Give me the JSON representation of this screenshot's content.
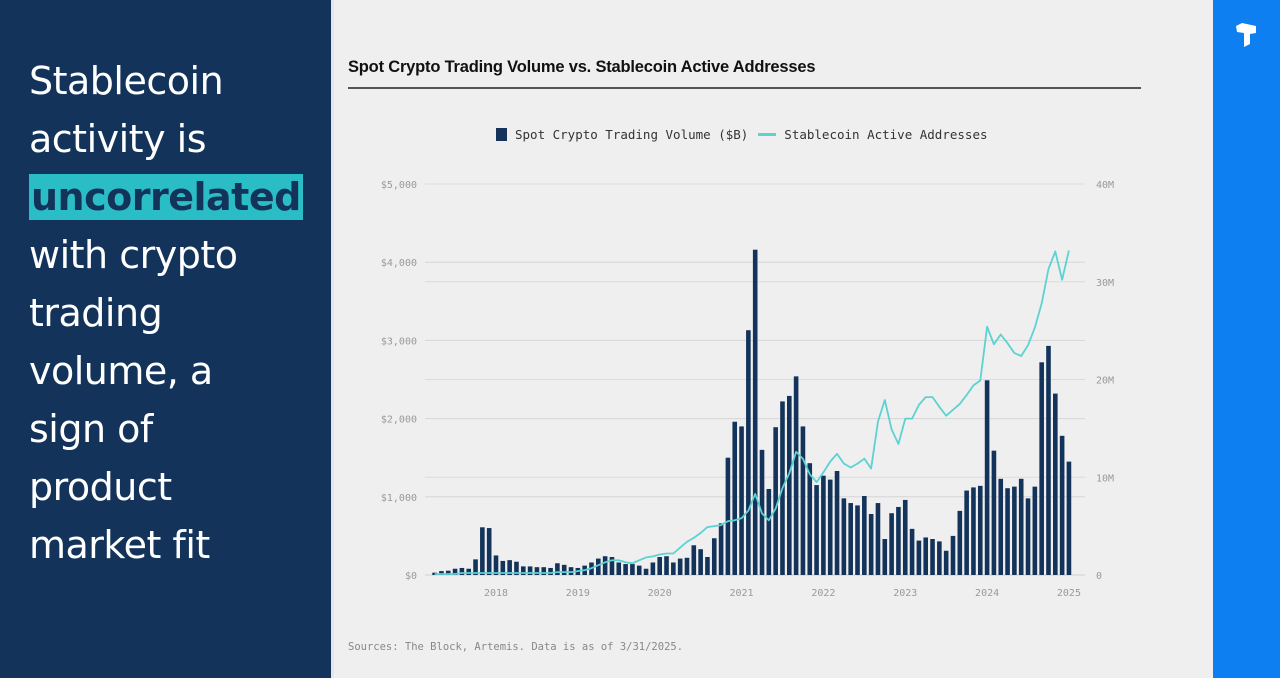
{
  "left_panel": {
    "headline_lines": [
      "Stablecoin",
      "activity is",
      "uncorrelated",
      "with crypto",
      "trading",
      "volume, a",
      "sign of",
      "product",
      "market fit"
    ],
    "highlighted_word": "uncorrelated",
    "highlight_color": "#2bbdc6",
    "background_color": "#13335a"
  },
  "right_bar": {
    "logo_icon": "brand-logo-icon",
    "color": "#0d7ff0"
  },
  "chart_data": {
    "type": "bar+line",
    "title": "Spot Crypto Trading Volume vs. Stablecoin Active Addresses",
    "legend": [
      {
        "name": "Spot Crypto Trading Volume ($B)",
        "kind": "bar",
        "color": "#13335a"
      },
      {
        "name": "Stablecoin Active Addresses",
        "kind": "line",
        "color": "#5cd2d1"
      }
    ],
    "legend_position": "top-center",
    "x_range": [
      "2017-04",
      "2025-03"
    ],
    "x_ticks": [
      "2018",
      "2019",
      "2020",
      "2021",
      "2022",
      "2023",
      "2024",
      "2025"
    ],
    "y_left": {
      "label": "Spot Crypto Trading Volume ($B)",
      "ticks": [
        "$0",
        "$1,000",
        "$2,000",
        "$3,000",
        "$4,000",
        "$5,000"
      ],
      "range": [
        0,
        5000
      ]
    },
    "y_right": {
      "label": "Stablecoin Active Addresses",
      "ticks": [
        "0",
        "10M",
        "20M",
        "30M",
        "40M"
      ],
      "range": [
        0,
        40
      ]
    },
    "grid": true,
    "start_month": "2017-04",
    "series": [
      {
        "name": "Spot Crypto Trading Volume ($B)",
        "axis": "left",
        "values": [
          30,
          50,
          55,
          80,
          90,
          80,
          200,
          610,
          600,
          250,
          180,
          190,
          170,
          110,
          110,
          100,
          100,
          90,
          150,
          130,
          100,
          90,
          120,
          160,
          210,
          240,
          230,
          160,
          140,
          140,
          120,
          80,
          160,
          230,
          240,
          160,
          210,
          220,
          380,
          330,
          230,
          470,
          660,
          1500,
          1960,
          1900,
          3130,
          4160,
          1600,
          1100,
          1890,
          2220,
          2290,
          2540,
          1900,
          1430,
          1150,
          1270,
          1220,
          1330,
          980,
          920,
          890,
          1010,
          780,
          920,
          460,
          790,
          870,
          960,
          590,
          440,
          480,
          460,
          430,
          310,
          500,
          820,
          1080,
          1120,
          1140,
          2490,
          1590,
          1230,
          1110,
          1130,
          1230,
          980,
          1130,
          2720,
          2930,
          2320,
          1780,
          1450
        ]
      },
      {
        "name": "Stablecoin Active Addresses",
        "axis": "right",
        "unit": "M",
        "values": [
          0.1,
          0.1,
          0.1,
          0.1,
          0.2,
          0.2,
          0.2,
          0.2,
          0.2,
          0.2,
          0.2,
          0.2,
          0.2,
          0.2,
          0.2,
          0.2,
          0.2,
          0.2,
          0.3,
          0.3,
          0.3,
          0.4,
          0.5,
          0.7,
          1.0,
          1.3,
          1.5,
          1.5,
          1.3,
          1.2,
          1.5,
          1.8,
          1.9,
          2.1,
          2.2,
          2.2,
          2.8,
          3.4,
          3.8,
          4.3,
          4.9,
          5.0,
          5.1,
          5.5,
          5.6,
          5.8,
          6.6,
          8.3,
          6.3,
          5.6,
          6.8,
          8.9,
          10.4,
          12.6,
          11.9,
          10.3,
          9.5,
          10.5,
          11.6,
          12.4,
          11.4,
          11.0,
          11.4,
          11.9,
          10.9,
          15.7,
          17.9,
          14.9,
          13.4,
          16.0,
          16.0,
          17.4,
          18.2,
          18.2,
          17.2,
          16.3,
          16.9,
          17.5,
          18.4,
          19.4,
          19.9,
          25.4,
          23.6,
          24.6,
          23.7,
          22.7,
          22.4,
          23.5,
          25.3,
          27.8,
          31.3,
          33.1,
          30.2,
          33.2
        ]
      }
    ]
  },
  "footer": {
    "source_text": "Sources: The Block, Artemis. Data is as of 3/31/2025."
  }
}
